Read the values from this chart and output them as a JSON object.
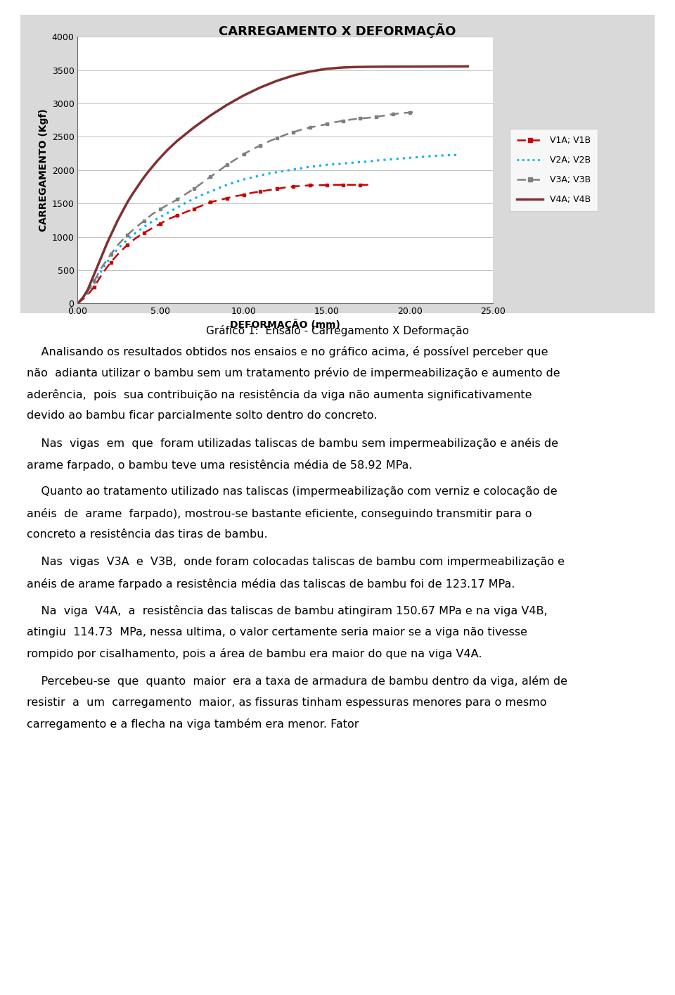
{
  "title": "CARREGAMENTO X DEFORMAÇÃO",
  "xlabel": "DEFORMAÇÃO (mm)",
  "ylabel": "CARREGAMENTO (Kgf)",
  "xlim": [
    0,
    25
  ],
  "ylim": [
    0,
    4000
  ],
  "xticks": [
    0.0,
    5.0,
    10.0,
    15.0,
    20.0,
    25.0
  ],
  "yticks": [
    0,
    500,
    1000,
    1500,
    2000,
    2500,
    3000,
    3500,
    4000
  ],
  "chart_bg": "#d9d9d9",
  "plot_bg": "#ffffff",
  "series": {
    "V1A_V1B": {
      "label": "V1A; V1B",
      "color": "#cc0000",
      "style": "--",
      "x": [
        0,
        0.5,
        1.0,
        1.5,
        2.0,
        2.5,
        3.0,
        3.5,
        4.0,
        4.5,
        5.0,
        5.5,
        6.0,
        6.5,
        7.0,
        7.5,
        8.0,
        8.5,
        9.0,
        9.5,
        10.0,
        10.5,
        11.0,
        11.5,
        12.0,
        12.5,
        13.0,
        13.5,
        14.0,
        14.5,
        15.0,
        15.5,
        16.0,
        16.5,
        17.0,
        17.5
      ],
      "y": [
        0,
        100,
        250,
        450,
        620,
        760,
        880,
        980,
        1060,
        1130,
        1200,
        1270,
        1320,
        1370,
        1420,
        1470,
        1520,
        1550,
        1580,
        1610,
        1630,
        1660,
        1680,
        1700,
        1720,
        1740,
        1755,
        1765,
        1772,
        1775,
        1778,
        1780,
        1780,
        1780,
        1780,
        1780
      ]
    },
    "V2A_V2B": {
      "label": "V2A; V2B",
      "color": "#00b0f0",
      "style": ":",
      "x": [
        0,
        0.5,
        1.0,
        1.5,
        2.0,
        2.5,
        3.0,
        3.5,
        4.0,
        4.5,
        5.0,
        5.5,
        6.0,
        6.5,
        7.0,
        7.5,
        8.0,
        8.5,
        9.0,
        9.5,
        10.0,
        10.5,
        11.0,
        11.5,
        12.0,
        12.5,
        13.0,
        13.5,
        14.0,
        14.5,
        15.0,
        15.5,
        16.0,
        16.5,
        17.0,
        17.5,
        18.0,
        18.5,
        19.0,
        19.5,
        20.0,
        20.5,
        21.0,
        21.5,
        22.0,
        22.5,
        23.0
      ],
      "y": [
        0,
        120,
        300,
        520,
        700,
        840,
        960,
        1060,
        1150,
        1230,
        1300,
        1370,
        1440,
        1510,
        1570,
        1630,
        1680,
        1730,
        1780,
        1820,
        1860,
        1890,
        1920,
        1950,
        1970,
        1990,
        2010,
        2030,
        2050,
        2065,
        2080,
        2090,
        2100,
        2110,
        2120,
        2130,
        2145,
        2155,
        2165,
        2175,
        2185,
        2195,
        2205,
        2215,
        2220,
        2225,
        2230
      ]
    },
    "V3A_V3B": {
      "label": "V3A; V3B",
      "color": "#7f7f7f",
      "style": "--",
      "x": [
        0,
        0.5,
        1.0,
        1.5,
        2.0,
        2.5,
        3.0,
        3.5,
        4.0,
        4.5,
        5.0,
        5.5,
        6.0,
        6.5,
        7.0,
        7.5,
        8.0,
        8.5,
        9.0,
        9.5,
        10.0,
        10.5,
        11.0,
        11.5,
        12.0,
        12.5,
        13.0,
        13.5,
        14.0,
        14.5,
        15.0,
        15.5,
        16.0,
        16.5,
        17.0,
        17.5,
        18.0,
        18.5,
        19.0,
        19.5,
        20.0,
        20.5
      ],
      "y": [
        0,
        140,
        340,
        560,
        740,
        900,
        1030,
        1140,
        1240,
        1340,
        1420,
        1490,
        1560,
        1640,
        1720,
        1810,
        1900,
        1990,
        2080,
        2160,
        2240,
        2310,
        2370,
        2430,
        2480,
        2530,
        2570,
        2610,
        2640,
        2665,
        2690,
        2720,
        2740,
        2760,
        2775,
        2785,
        2800,
        2820,
        2840,
        2855,
        2865,
        2870
      ]
    },
    "V4A_V4B": {
      "label": "V4A; V4B",
      "color": "#7f3030",
      "style": "-",
      "x": [
        0,
        0.3,
        0.6,
        0.9,
        1.2,
        1.5,
        1.8,
        2.1,
        2.4,
        2.7,
        3.0,
        3.3,
        3.6,
        3.9,
        4.2,
        4.5,
        4.8,
        5.1,
        5.4,
        5.7,
        6.0,
        6.5,
        7.0,
        7.5,
        8.0,
        8.5,
        9.0,
        9.5,
        10.0,
        10.5,
        11.0,
        11.5,
        12.0,
        12.5,
        13.0,
        13.5,
        14.0,
        14.5,
        15.0,
        15.5,
        16.0,
        16.5,
        17.0,
        17.5,
        18.0,
        18.5,
        19.0,
        19.5,
        20.0,
        20.5,
        21.0,
        21.5,
        22.0,
        22.5,
        23.0,
        23.5
      ],
      "y": [
        0,
        80,
        200,
        380,
        560,
        740,
        920,
        1080,
        1240,
        1380,
        1520,
        1640,
        1750,
        1860,
        1960,
        2050,
        2140,
        2220,
        2300,
        2370,
        2440,
        2540,
        2640,
        2730,
        2820,
        2900,
        2980,
        3050,
        3120,
        3180,
        3240,
        3290,
        3340,
        3380,
        3420,
        3450,
        3480,
        3500,
        3520,
        3530,
        3540,
        3545,
        3548,
        3550,
        3551,
        3552,
        3552,
        3553,
        3553,
        3554,
        3554,
        3555,
        3555,
        3556,
        3556,
        3557
      ]
    }
  },
  "caption": "Gráfico 1:  Ensaio - Carregamento X Deformação",
  "para1": "    Analisando os resultados obtidos nos ensaios e no gráfico acima, é possível perceber que não adianta utilizar o bambu sem um tratamento prévio de impermeabilização e aumento de aderência, pois sua contribuição na resistência da viga não aumenta significativamente devido ao bambu ficar parcialmente solto dentro do concreto.",
  "para2": "    Nas vigas em que foram utilizadas taliscas de bambu sem impermeabilização e anéis de arame farpado, o bambu teve uma resistência média de 58.92 MPa.",
  "para3": "    Quanto ao tratamento utilizado nas taliscas (impermeabilização com verniz e colocação de anéis de arame farpado), mostrou-se bastante eficiente, conseguindo transmitir para o concreto a resistência das tiras de bambu.",
  "para4": "    Nas vigas V3A e V3B, onde foram colocadas taliscas de bambu com impermeabilização e anéis de arame farpado a resistência média das taliscas de bambu foi de 123.17 MPa.",
  "para5": "    Na viga V4A, a resistência das taliscas de bambu atingiram 150.67 MPa e na viga V4B, atingiu 114.73 MPa, nessa ultima, o valor certamente seria maior se a viga não tivesse rompido por cisalhamento, pois a área de bambu era maior do que na viga V4A.",
  "para6": "    Percebeu-se que quanto maior era a taxa de armadura de bambu dentro da viga, além de resistir a um carregamento maior, as fissuras tinham espessuras menores para o mesmo carregamento e a flecha na viga também era menor. Fator",
  "text_color": "#000000",
  "body_fontsize": 11.5,
  "caption_fontsize": 11
}
